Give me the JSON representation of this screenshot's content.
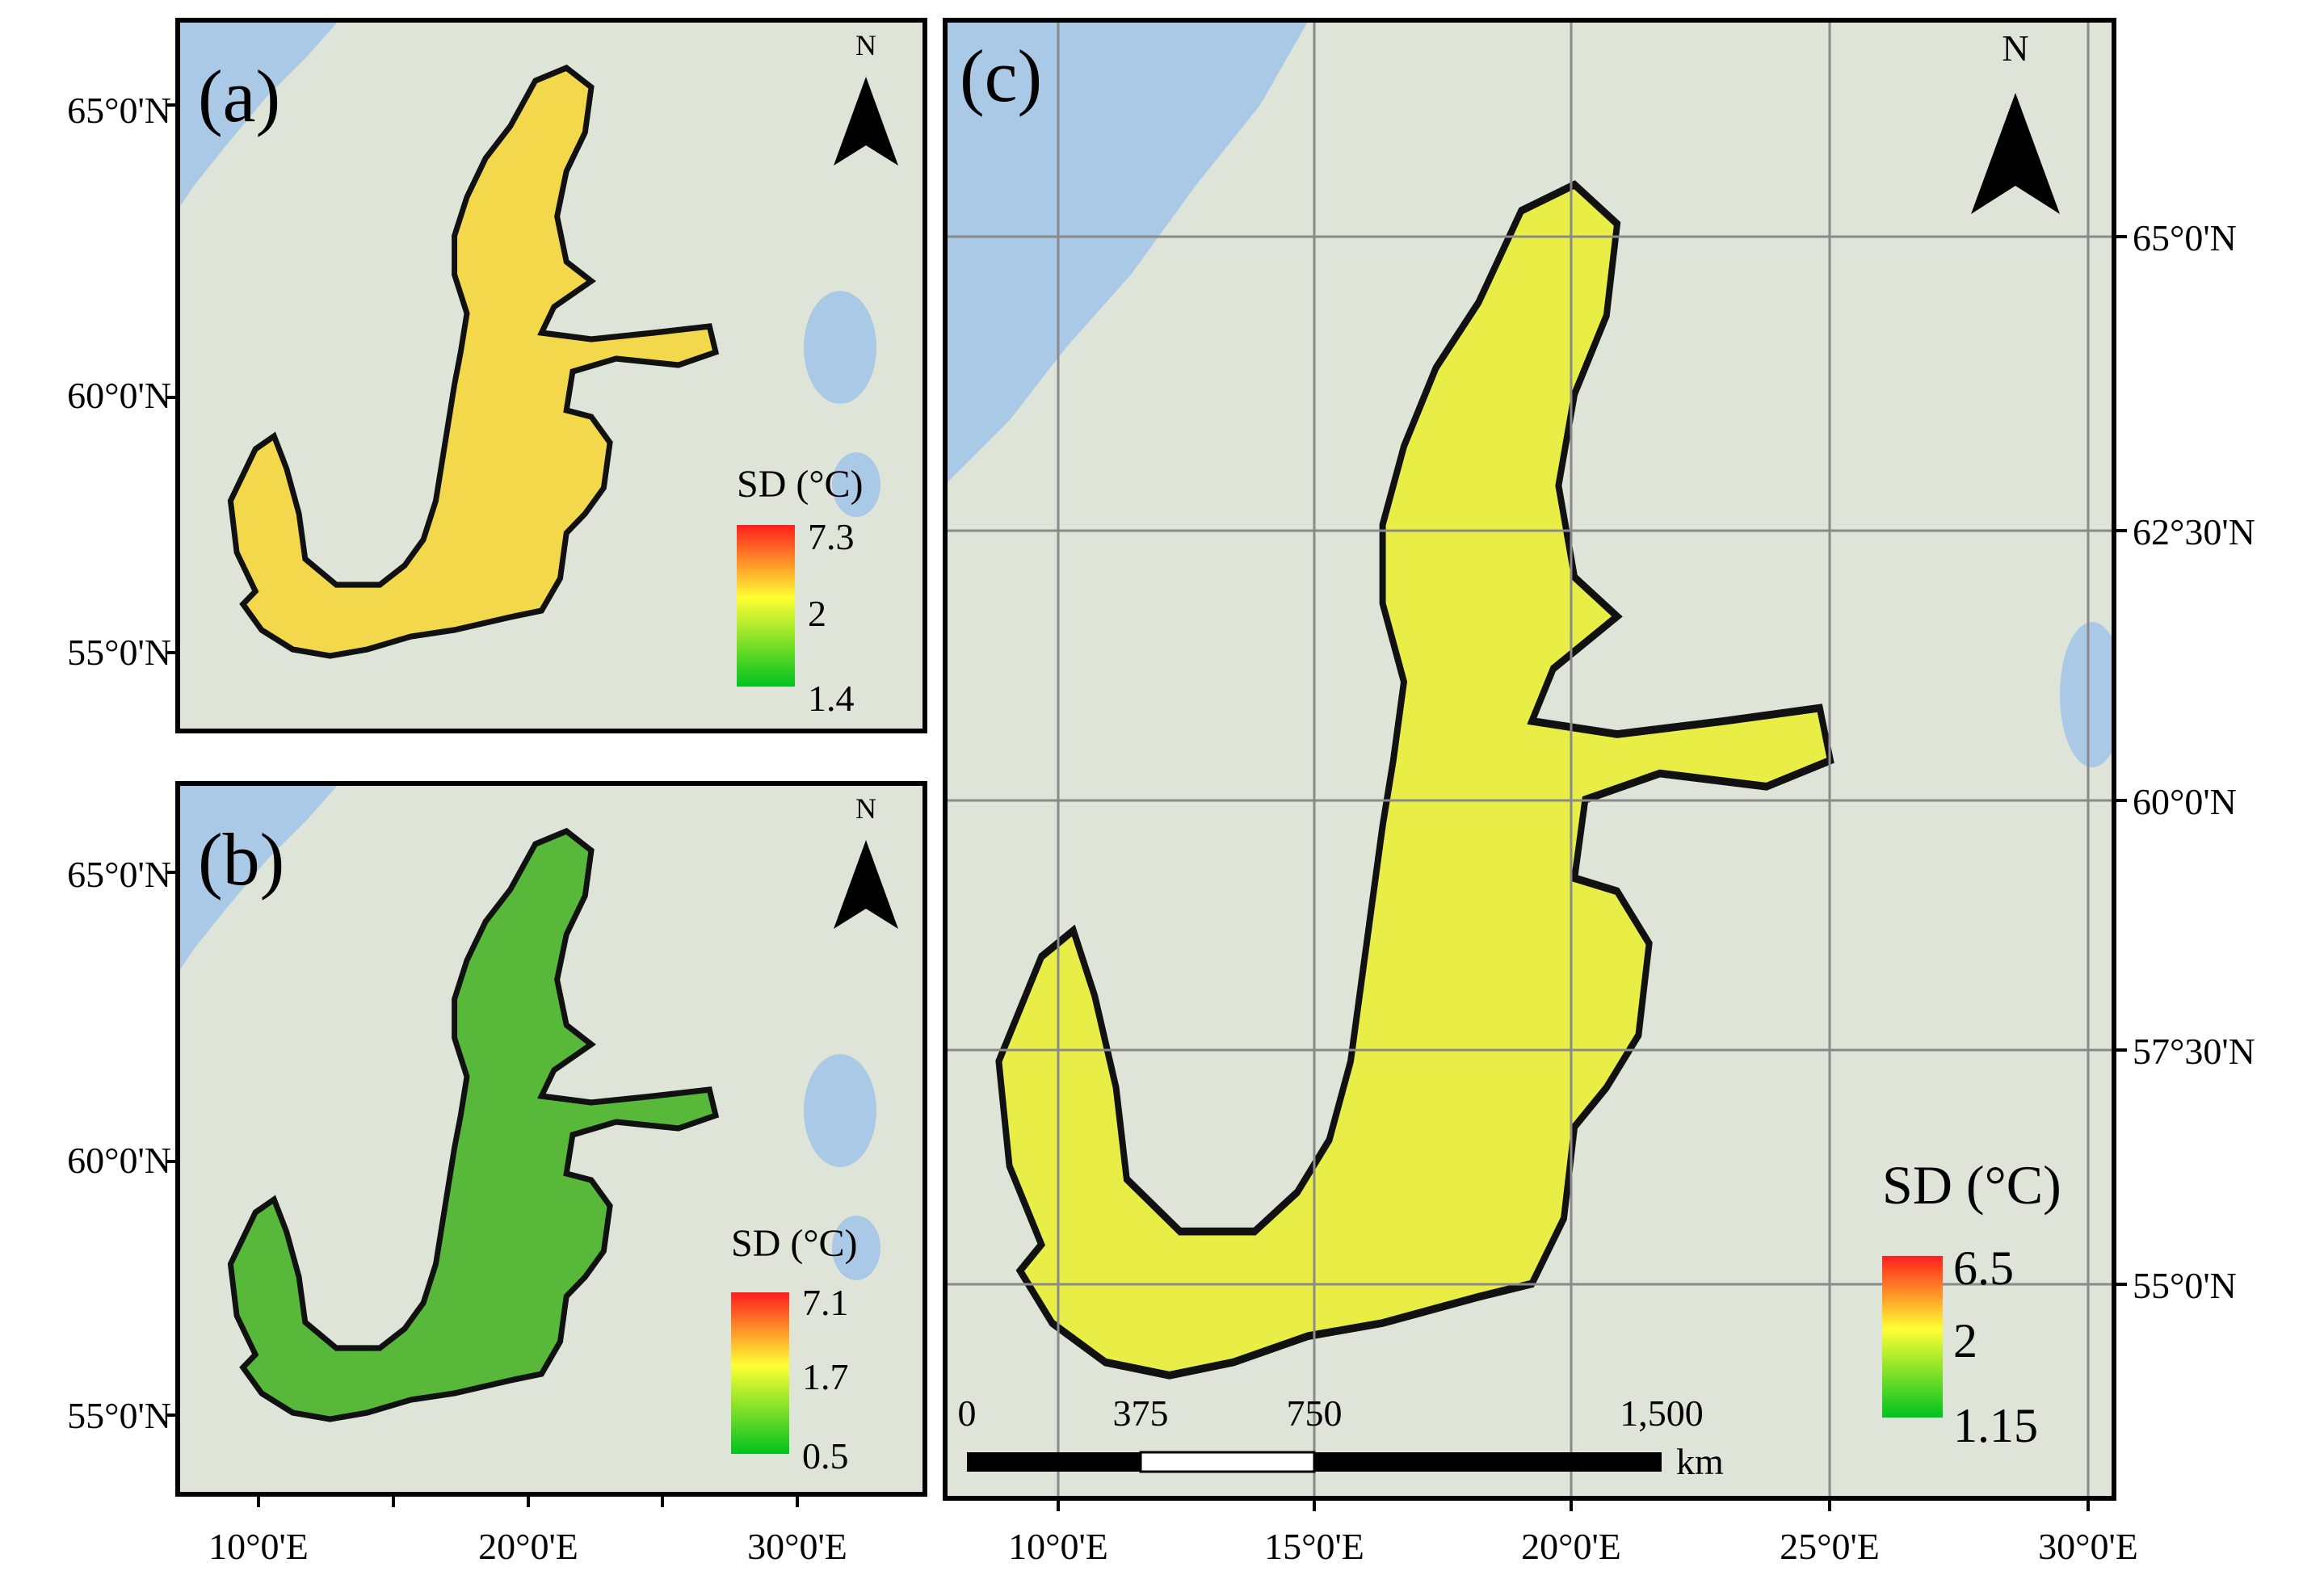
{
  "colors": {
    "land": "#dfe4d8",
    "land_light": "#ecefe6",
    "water_ocean": "#a9c9e6",
    "grid": "#8a8a8a",
    "frame": "#000000",
    "sd_high": "#ff1e1e",
    "sd_mid": "#ffff33",
    "sd_low": "#00c21e"
  },
  "panels": {
    "a": {
      "label": "(a)",
      "north": "N",
      "lat_labels": [
        "65°0'N",
        "60°0'N",
        "55°0'N"
      ],
      "legend": {
        "title": "SD (°C)",
        "max": "7.3",
        "mid": "2",
        "min": "1.4"
      },
      "fill_colors": [
        "#f6e34a",
        "#f2d84a",
        "#e6ea4a",
        "#f4cf46"
      ]
    },
    "b": {
      "label": "(b)",
      "north": "N",
      "lat_labels": [
        "65°0'N",
        "60°0'N",
        "55°0'N"
      ],
      "lon_labels": [
        "10°0'E",
        "20°0'E",
        "30°0'E"
      ],
      "legend": {
        "title": "SD (°C)",
        "max": "7.1",
        "mid": "1.7",
        "min": "0.5"
      },
      "fill_colors": [
        "#3fae3a",
        "#58b83a",
        "#7cc43c",
        "#6ab83a"
      ]
    },
    "c": {
      "label": "(c)",
      "north": "N",
      "lat_labels": [
        "65°0'N",
        "62°30'N",
        "60°0'N",
        "57°30'N",
        "55°0'N"
      ],
      "lon_labels": [
        "10°0'E",
        "15°0'E",
        "20°0'E",
        "25°0'E",
        "30°0'E"
      ],
      "legend": {
        "title": "SD (°C)",
        "max": "6.5",
        "mid": "2",
        "min": "1.15"
      },
      "scale_bar": {
        "labels": [
          "0",
          "375",
          "750",
          "1,500"
        ],
        "unit": "km"
      },
      "fill_colors": [
        "#9ad03e",
        "#c8e042",
        "#e8ee46",
        "#f0e444"
      ]
    }
  }
}
